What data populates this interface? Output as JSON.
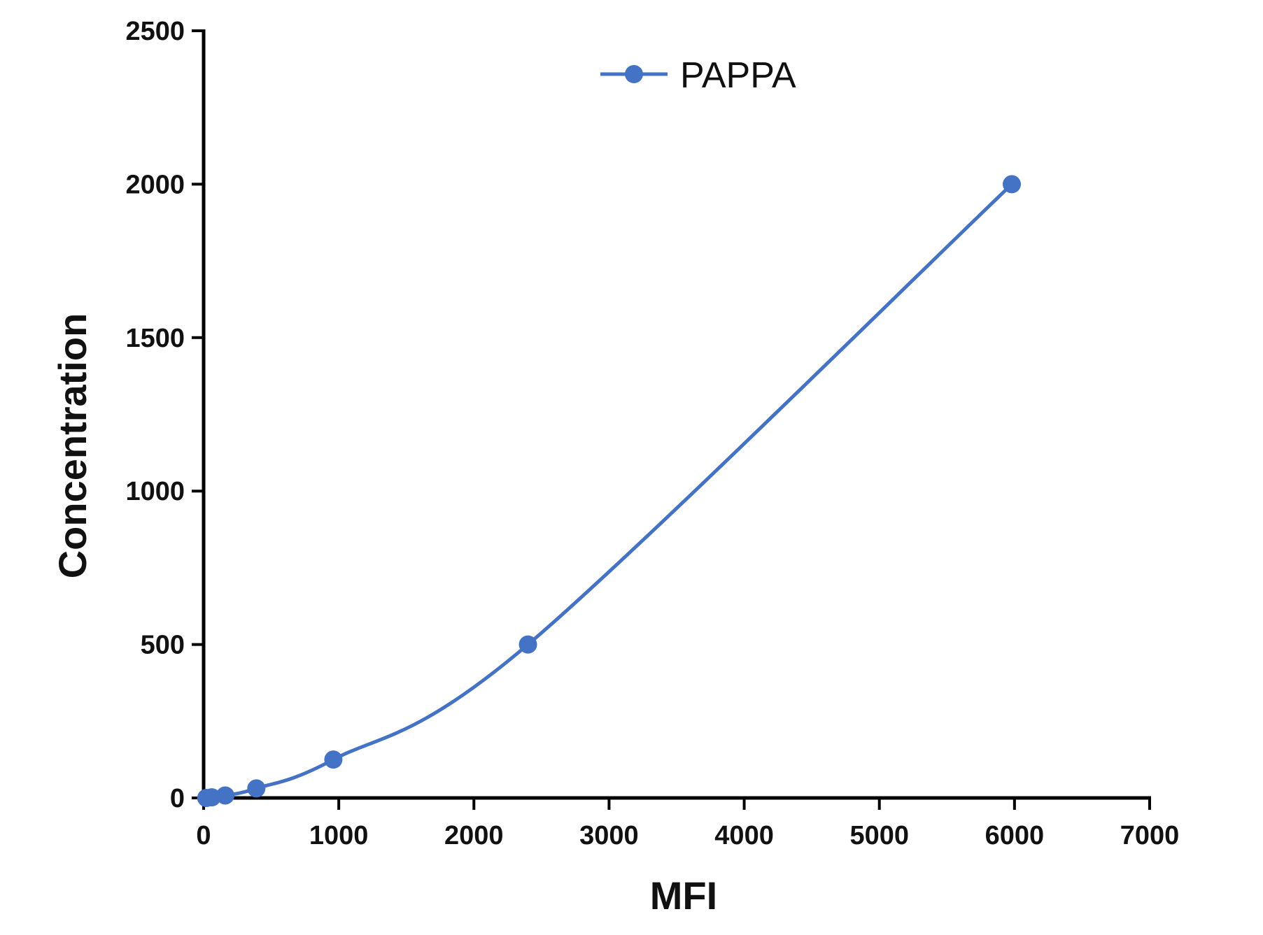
{
  "chart_data": {
    "type": "line",
    "title": "",
    "xlabel": "MFI",
    "ylabel": "Concentration",
    "xlim": [
      0,
      7000
    ],
    "ylim": [
      0,
      2500
    ],
    "x_ticks": [
      0,
      1000,
      2000,
      3000,
      4000,
      5000,
      6000,
      7000
    ],
    "y_ticks": [
      0,
      500,
      1000,
      1500,
      2000,
      2500
    ],
    "x_tick_labels": [
      "0",
      "1000",
      "2000",
      "3000",
      "4000",
      "5000",
      "6000",
      "7000"
    ],
    "y_tick_labels": [
      "0",
      "500",
      "1000",
      "1500",
      "2000",
      "2500"
    ],
    "grid": false,
    "legend_position": "top-center",
    "series": [
      {
        "name": "PAPPA",
        "color": "#4472C4",
        "marker": "circle",
        "x": [
          20,
          60,
          160,
          390,
          960,
          2400,
          5980
        ],
        "y": [
          0,
          2,
          8,
          31,
          125,
          500,
          2000
        ]
      }
    ]
  }
}
